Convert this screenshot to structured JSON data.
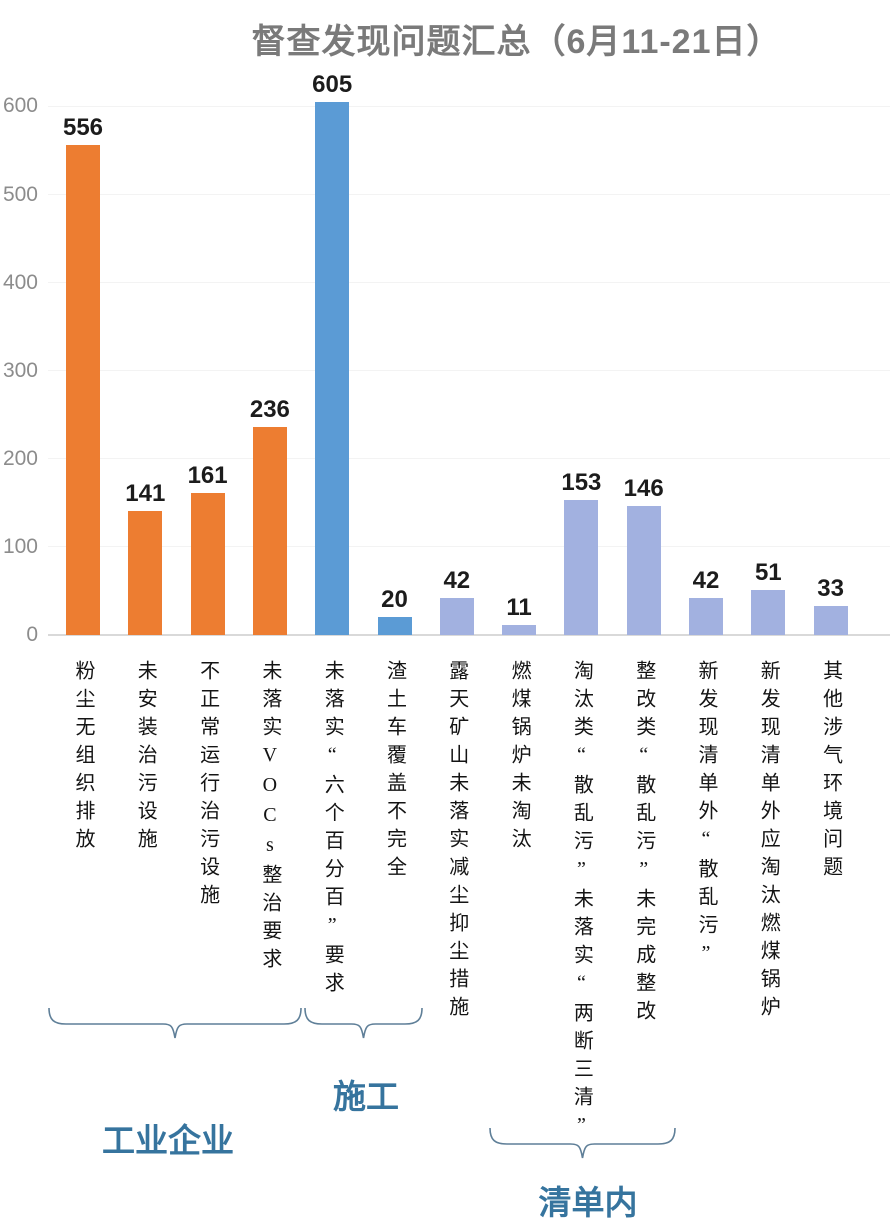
{
  "chart_data": {
    "type": "bar",
    "title": "督查发现问题汇总（6月11-21日）",
    "categories": [
      "粉尘无组织排放",
      "未安装治污设施",
      "不正常运行治污设施",
      "未落实VOCs整治要求",
      "未落实“六个百分百”要求",
      "渣土车覆盖不完全",
      "露天矿山未落实减尘抑尘措施",
      "燃煤锅炉未淘汰",
      "淘汰类“散乱污”未落实“两断三清”",
      "整改类“散乱污”未完成整改",
      "新发现清单外“散乱污”",
      "新发现清单外应淘汰燃煤锅炉",
      "其他涉气环境问题"
    ],
    "values": [
      556,
      141,
      161,
      236,
      605,
      20,
      42,
      11,
      153,
      146,
      42,
      51,
      33
    ],
    "bar_colors": [
      "#ED7D31",
      "#ED7D31",
      "#ED7D31",
      "#ED7D31",
      "#5B9BD5",
      "#5B9BD5",
      "#A2B1E0",
      "#A2B1E0",
      "#A2B1E0",
      "#A2B1E0",
      "#A2B1E0",
      "#A2B1E0",
      "#A2B1E0"
    ],
    "xlabel": "",
    "ylabel": "",
    "ylim": [
      0,
      600
    ],
    "yticks": [
      0,
      100,
      200,
      300,
      400,
      500,
      600
    ],
    "grid": "faint-horizontal",
    "legend": "none",
    "groups": [
      {
        "label": "工业企业",
        "from": 0,
        "to": 3
      },
      {
        "label": "施工",
        "from": 4,
        "to": 5
      },
      {
        "label": "清单内",
        "from": 7,
        "to": 9
      }
    ],
    "colors": {
      "industrial_orange": "#ED7D31",
      "construction_blue": "#5B9BD5",
      "list_periwinkle": "#A2B1E0",
      "group_label_blue": "#36749e",
      "brace_gray_blue": "#5f7f98",
      "title_gray": "#7a7a7a",
      "axis_tick_gray": "#8c8c8c",
      "baseline_gray": "#d9d9d9"
    }
  }
}
